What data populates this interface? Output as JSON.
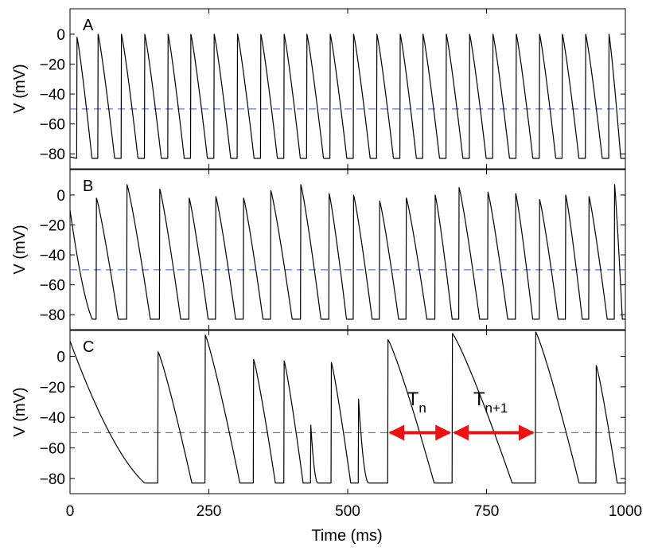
{
  "chart_data": [
    {
      "type": "line",
      "panel_label": "A",
      "ylabel": "V (mV)",
      "xlim": [
        0,
        1000
      ],
      "ylim": [
        -90,
        17
      ],
      "yticks": [
        0,
        -20,
        -40,
        -60,
        -80
      ],
      "threshold": -50,
      "threshold_color": "#3355dd",
      "trace_color": "#000000",
      "v_min": -83,
      "spike_times": [
        12,
        50,
        92,
        134,
        176,
        217,
        259,
        301,
        343,
        385,
        426,
        468,
        510,
        552,
        594,
        635,
        677,
        719,
        761,
        803,
        845,
        886,
        928,
        970
      ],
      "spike_peaks": [
        -2,
        0,
        0,
        0,
        0,
        0,
        0,
        0,
        0,
        0,
        0,
        0,
        0,
        0,
        0,
        0,
        0,
        0,
        0,
        0,
        0,
        0,
        0,
        0
      ],
      "start_v": -82
    },
    {
      "type": "line",
      "panel_label": "B",
      "ylabel": "V (mV)",
      "xlim": [
        0,
        1000
      ],
      "ylim": [
        -90,
        17
      ],
      "yticks": [
        0,
        -20,
        -40,
        -60,
        -80
      ],
      "threshold": -50,
      "threshold_color": "#3355dd",
      "trace_color": "#000000",
      "v_min": -83,
      "spike_times": [
        47,
        102,
        161,
        214,
        262,
        312,
        361,
        415,
        466,
        510,
        557,
        605,
        657,
        700,
        752,
        802,
        845,
        892,
        934,
        980
      ],
      "spike_peaks": [
        -2,
        7,
        4,
        -2,
        -1,
        -2,
        3,
        7,
        1,
        0,
        -4,
        -2,
        0,
        5,
        2,
        1,
        -3,
        0,
        -1,
        7
      ],
      "start_v": -10
    },
    {
      "type": "line",
      "panel_label": "C",
      "ylabel": "V (mV)",
      "xlabel": "Time (ms)",
      "xlim": [
        0,
        1000
      ],
      "xticks": [
        0,
        250,
        500,
        750,
        1000
      ],
      "ylim": [
        -90,
        17
      ],
      "yticks": [
        0,
        -20,
        -40,
        -60,
        -80
      ],
      "threshold": -50,
      "threshold_color": "#3355dd",
      "trace_color": "#000000",
      "v_min": -83,
      "spike_times": [
        158,
        243,
        330,
        385,
        433,
        470,
        519,
        572,
        688,
        838,
        947
      ],
      "spike_peaks": [
        3,
        14,
        -2,
        -3,
        -45,
        -4,
        -28,
        11,
        15,
        16,
        -6
      ],
      "start_v": 10,
      "intervals": [
        {
          "label": "T",
          "subscript": "n",
          "from": 572,
          "to": 688
        },
        {
          "label": "T",
          "subscript": "n+1",
          "from": 688,
          "to": 838
        }
      ],
      "interval_color": "#ee1111"
    }
  ]
}
